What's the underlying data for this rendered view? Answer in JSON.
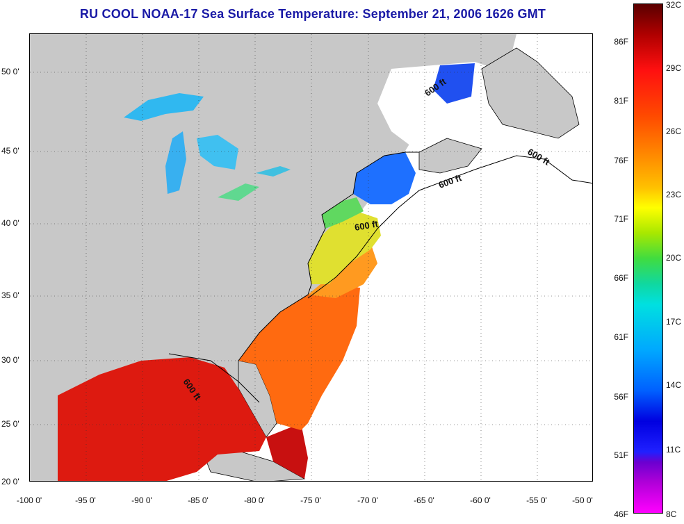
{
  "title": "RU COOL  NOAA-17  Sea Surface Temperature:  September 21, 2006 1626 GMT",
  "axes": {
    "lon_min": -100,
    "lon_max": -50,
    "lat_min": 20,
    "lat_max": 52.5,
    "lon_ticks": [
      "-100 0'",
      "-95 0'",
      "-90 0'",
      "-85 0'",
      "-80 0'",
      "-75 0'",
      "-70 0'",
      "-65 0'",
      "-60 0'",
      "-55 0'",
      "-50 0'"
    ],
    "lat_ticks": [
      "50 0'",
      "45 0'",
      "40 0'",
      "35 0'",
      "30 0'",
      "25 0'",
      "20 0'"
    ]
  },
  "colorbar": {
    "fahrenheit": [
      "86F",
      "81F",
      "76F",
      "71F",
      "66F",
      "61F",
      "56F",
      "51F",
      "46F"
    ],
    "celsius": [
      "32C",
      "29C",
      "26C",
      "23C",
      "20C",
      "17C",
      "14C",
      "11C",
      "8C"
    ],
    "range_c": [
      8,
      32
    ]
  },
  "contour_labels": [
    "600 ft",
    "600 ft",
    "600 ft",
    "600 ft",
    "600 ft"
  ],
  "colors": {
    "land": "#c8c8c8",
    "no_data": "#ffffff",
    "title": "#1a1aa6",
    "warm_gulf": "#dd1a10",
    "atlantic_south": "#ff6a10",
    "mid_atlantic": "#ffd040",
    "northeast": "#1e70ff",
    "great_lakes": "#30b8f0"
  }
}
